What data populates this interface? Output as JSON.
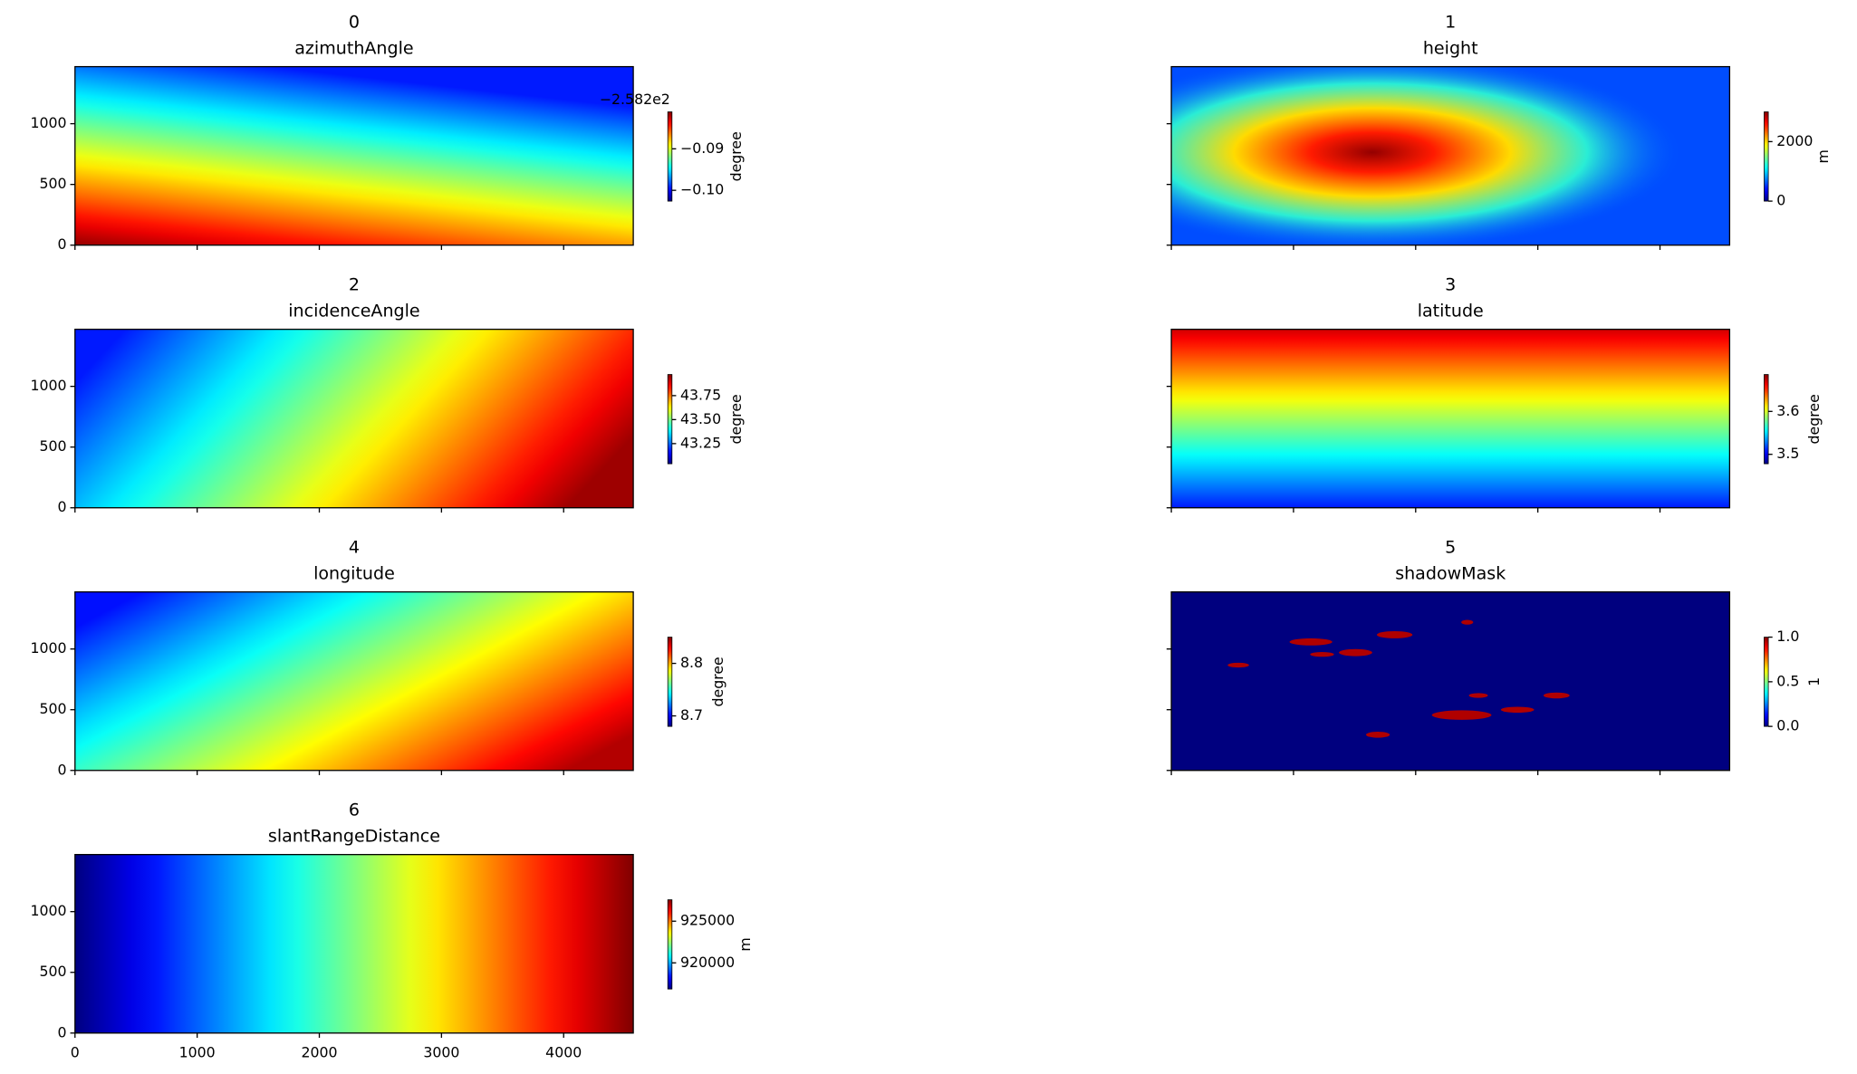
{
  "chart_data": [
    {
      "type": "heatmap",
      "title": "0",
      "subtitle": "azimuthAngle",
      "xlim": [
        0,
        4570
      ],
      "ylim": [
        0,
        1470
      ],
      "xticks": [
        0,
        1000,
        2000,
        3000,
        4000
      ],
      "yticks": [
        0,
        500,
        1000
      ],
      "xtick_labels": false,
      "ytick_labels": true,
      "colorbar": {
        "label": "degree",
        "offset_text": "−2.582e2",
        "lim": [
          -0.1026,
          -0.0811
        ],
        "ticks": [
          {
            "value": -0.09,
            "label": "−0.09"
          },
          {
            "value": -0.1,
            "label": "−0.10"
          }
        ]
      }
    },
    {
      "type": "heatmap",
      "title": "1",
      "subtitle": "height",
      "xlim": [
        0,
        4570
      ],
      "ylim": [
        0,
        1470
      ],
      "xticks": [
        0,
        1000,
        2000,
        3000,
        4000
      ],
      "yticks": [
        0,
        500,
        1000
      ],
      "xtick_labels": false,
      "ytick_labels": false,
      "colorbar": {
        "label": "m",
        "lim": [
          0,
          3000
        ],
        "ticks": [
          0,
          2000
        ]
      }
    },
    {
      "type": "heatmap",
      "title": "2",
      "subtitle": "incidenceAngle",
      "xlim": [
        0,
        4570
      ],
      "ylim": [
        0,
        1470
      ],
      "xticks": [
        0,
        1000,
        2000,
        3000,
        4000
      ],
      "yticks": [
        0,
        500,
        1000
      ],
      "xtick_labels": false,
      "ytick_labels": true,
      "colorbar": {
        "label": "degree",
        "lim": [
          43.04,
          43.97
        ],
        "ticks": [
          43.25,
          {
            "value": 43.5,
            "label": "43.50"
          },
          43.75
        ]
      }
    },
    {
      "type": "heatmap",
      "title": "3",
      "subtitle": "latitude",
      "xlim": [
        0,
        4570
      ],
      "ylim": [
        0,
        1470
      ],
      "xticks": [
        0,
        1000,
        2000,
        3000,
        4000
      ],
      "yticks": [
        0,
        500,
        1000
      ],
      "xtick_labels": false,
      "ytick_labels": false,
      "colorbar": {
        "label": "degree",
        "lim": [
          3.478,
          3.686
        ],
        "ticks": [
          3.5,
          3.6
        ]
      }
    },
    {
      "type": "heatmap",
      "title": "4",
      "subtitle": "longitude",
      "xlim": [
        0,
        4570
      ],
      "ylim": [
        0,
        1470
      ],
      "xticks": [
        0,
        1000,
        2000,
        3000,
        4000
      ],
      "yticks": [
        0,
        500,
        1000
      ],
      "xtick_labels": false,
      "ytick_labels": true,
      "colorbar": {
        "label": "degree",
        "lim": [
          8.68,
          8.85
        ],
        "ticks": [
          8.7,
          8.8
        ]
      }
    },
    {
      "type": "heatmap",
      "title": "5",
      "subtitle": "shadowMask",
      "xlim": [
        0,
        4570
      ],
      "ylim": [
        0,
        1470
      ],
      "xticks": [
        0,
        1000,
        2000,
        3000,
        4000
      ],
      "yticks": [
        0,
        500,
        1000
      ],
      "xtick_labels": false,
      "ytick_labels": false,
      "colorbar": {
        "label": "1",
        "lim": [
          0,
          1
        ],
        "ticks": [
          {
            "value": 0,
            "label": "0.0"
          },
          0.5,
          {
            "value": 1,
            "label": "1.0"
          }
        ]
      }
    },
    {
      "type": "heatmap",
      "title": "6",
      "subtitle": "slantRangeDistance",
      "xlim": [
        0,
        4570
      ],
      "ylim": [
        0,
        1470
      ],
      "xticks": [
        0,
        1000,
        2000,
        3000,
        4000
      ],
      "yticks": [
        0,
        500,
        1000
      ],
      "xtick_labels": true,
      "ytick_labels": true,
      "colorbar": {
        "label": "m",
        "lim": [
          916860,
          927570
        ],
        "ticks": [
          920000,
          925000
        ]
      }
    }
  ]
}
